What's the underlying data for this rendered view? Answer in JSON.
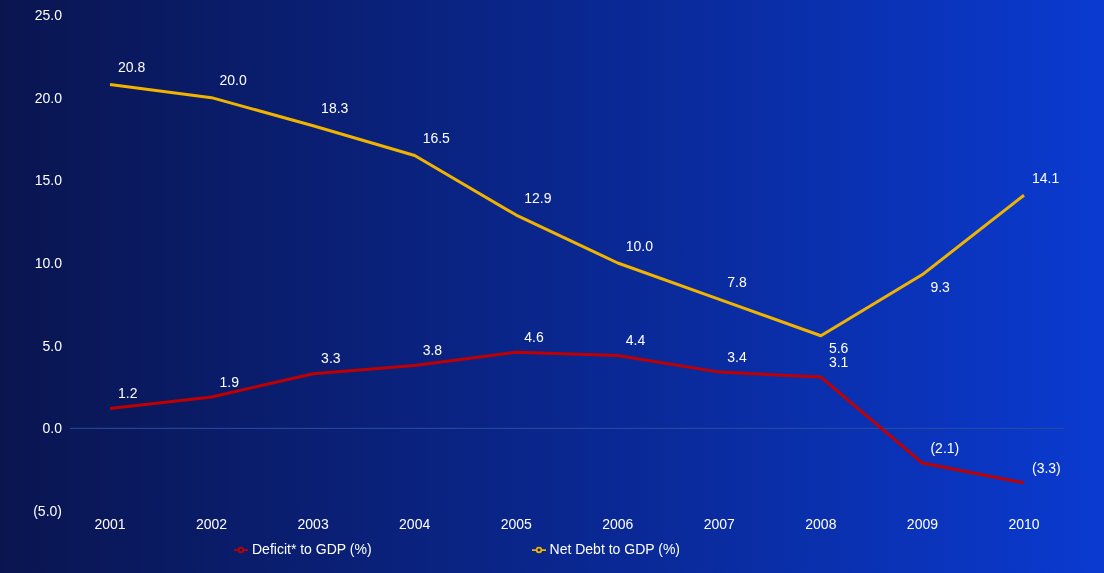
{
  "chart_data": {
    "type": "line",
    "categories": [
      "2001",
      "2002",
      "2003",
      "2004",
      "2005",
      "2006",
      "2007",
      "2008",
      "2009",
      "2010"
    ],
    "series": [
      {
        "name": "Deficit* to GDP (%)",
        "color": "#c00000",
        "values": [
          1.2,
          1.9,
          3.3,
          3.8,
          4.6,
          4.4,
          3.4,
          3.1,
          -2.1,
          -3.3
        ],
        "value_labels": [
          "1.2",
          "1.9",
          "3.3",
          "3.8",
          "4.6",
          "4.4",
          "3.4",
          "3.1",
          "(2.1)",
          "(3.3)"
        ]
      },
      {
        "name": "Net Debt to GDP (%)",
        "color": "#f0b400",
        "values": [
          20.8,
          20.0,
          18.3,
          16.5,
          12.9,
          10.0,
          7.8,
          5.6,
          9.3,
          14.1
        ],
        "value_labels": [
          "20.8",
          "20.0",
          "18.3",
          "16.5",
          "12.9",
          "10.0",
          "7.8",
          "5.6",
          "9.3",
          "14.1"
        ]
      }
    ],
    "ylim": [
      -5,
      25
    ],
    "yticks": [
      {
        "value": -5,
        "label": "(5.0)"
      },
      {
        "value": 0,
        "label": "0.0"
      },
      {
        "value": 5,
        "label": "5.0"
      },
      {
        "value": 10,
        "label": "10.0"
      },
      {
        "value": 15,
        "label": "15.0"
      },
      {
        "value": 20,
        "label": "20.0"
      },
      {
        "value": 25,
        "label": "25.0"
      }
    ],
    "ref_lines": [
      {
        "axis": "y",
        "value": 0,
        "color": "#2a4fa0"
      }
    ],
    "grid": false,
    "legend": "bottom",
    "marker": "none",
    "line_style": "solid"
  }
}
